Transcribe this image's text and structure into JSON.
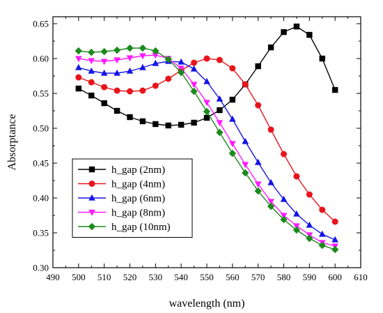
{
  "chart_data": {
    "type": "line",
    "title": "",
    "xlabel": "wavelength (nm)",
    "ylabel": "Absorptance",
    "xlim": [
      490,
      610
    ],
    "ylim": [
      0.3,
      0.66
    ],
    "xticks": [
      490,
      500,
      510,
      520,
      530,
      540,
      550,
      560,
      570,
      580,
      590,
      600,
      610
    ],
    "yticks": [
      "0.30",
      "0.35",
      "0.40",
      "0.45",
      "0.50",
      "0.55",
      "0.60",
      "0.65"
    ],
    "grid": false,
    "legend_position": "bottom-left",
    "x": [
      500,
      505,
      510,
      515,
      520,
      525,
      530,
      535,
      540,
      545,
      550,
      555,
      560,
      565,
      570,
      575,
      580,
      585,
      590,
      595,
      600
    ],
    "series": [
      {
        "name": "h_gap (2nm)",
        "color": "#000000",
        "marker": "square",
        "values": [
          0.557,
          0.547,
          0.536,
          0.525,
          0.516,
          0.51,
          0.506,
          0.504,
          0.505,
          0.508,
          0.515,
          0.526,
          0.541,
          0.563,
          0.589,
          0.616,
          0.638,
          0.646,
          0.634,
          0.6,
          0.555
        ]
      },
      {
        "name": "h_gap (4nm)",
        "color": "#e8141c",
        "marker": "circle",
        "values": [
          0.573,
          0.566,
          0.559,
          0.554,
          0.553,
          0.554,
          0.561,
          0.571,
          0.583,
          0.594,
          0.6,
          0.598,
          0.586,
          0.563,
          0.533,
          0.498,
          0.463,
          0.431,
          0.405,
          0.383,
          0.366
        ]
      },
      {
        "name": "h_gap (6nm)",
        "color": "#1414e6",
        "marker": "triangle",
        "values": [
          0.587,
          0.582,
          0.579,
          0.579,
          0.582,
          0.587,
          0.593,
          0.596,
          0.595,
          0.585,
          0.567,
          0.542,
          0.513,
          0.481,
          0.451,
          0.422,
          0.398,
          0.377,
          0.361,
          0.348,
          0.34
        ]
      },
      {
        "name": "h_gap (8nm)",
        "color": "#ff1aff",
        "marker": "triangle-down",
        "values": [
          0.6,
          0.597,
          0.596,
          0.598,
          0.601,
          0.604,
          0.605,
          0.6,
          0.586,
          0.563,
          0.537,
          0.508,
          0.478,
          0.448,
          0.42,
          0.395,
          0.375,
          0.36,
          0.347,
          0.336,
          0.331
        ]
      },
      {
        "name": "h_gap (10nm)",
        "color": "#1a8a1a",
        "marker": "diamond",
        "values": [
          0.611,
          0.609,
          0.61,
          0.612,
          0.615,
          0.615,
          0.611,
          0.599,
          0.58,
          0.553,
          0.524,
          0.494,
          0.464,
          0.436,
          0.41,
          0.388,
          0.369,
          0.354,
          0.342,
          0.332,
          0.326
        ]
      }
    ]
  }
}
